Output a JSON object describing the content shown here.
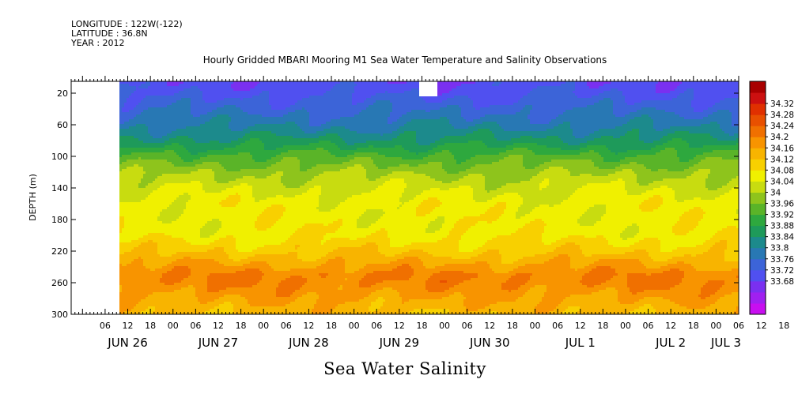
{
  "header": {
    "longitude": "LONGITUDE : 122W(-122)",
    "latitude": "LATITUDE : 36.8N",
    "year": "YEAR : 2012"
  },
  "chart_data": {
    "type": "heatmap",
    "title": "Hourly Gridded MBARI Mooring M1 Sea Water Temperature and Salinity Observations",
    "xlabel": "Sea Water Salinity",
    "ylabel": "DEPTH (m)",
    "x_range": [
      "2012-06-25T21:00",
      "2012-07-03T06:00"
    ],
    "data_start": "2012-06-26T10:00",
    "y_range": [
      300,
      5
    ],
    "y_ticks": [
      20,
      60,
      100,
      140,
      180,
      220,
      260,
      300
    ],
    "x_hour_labels": [
      "06",
      "12",
      "18",
      "00",
      "06",
      "12",
      "18",
      "00",
      "06",
      "12",
      "18",
      "00",
      "06",
      "12",
      "18",
      "00",
      "06",
      "12",
      "18",
      "00",
      "06",
      "12",
      "18",
      "00",
      "06",
      "12",
      "18",
      "00",
      "06",
      "12",
      "18",
      "00"
    ],
    "x_date_labels": [
      "JUN 26",
      "JUN 27",
      "JUN 28",
      "JUN 29",
      "JUN 30",
      "JUL  1",
      "JUL  2",
      "JUL  3"
    ],
    "colorbar": {
      "levels": [
        33.68,
        33.72,
        33.76,
        33.8,
        33.84,
        33.88,
        33.92,
        33.96,
        34,
        34.04,
        34.08,
        34.12,
        34.16,
        34.2,
        34.24,
        34.28,
        34.32
      ],
      "labels": [
        "34.32",
        "34.28",
        "34.24",
        "34.2",
        "34.16",
        "34.12",
        "34.08",
        "34.04",
        "34",
        "33.96",
        "33.92",
        "33.88",
        "33.84",
        "33.8",
        "33.76",
        "33.72",
        "33.68"
      ],
      "colors": [
        "#c80ff0",
        "#a020f0",
        "#7a30f0",
        "#5050f0",
        "#3c64d8",
        "#2878b4",
        "#1c8a8c",
        "#1e9a5a",
        "#2ea83e",
        "#5ab428",
        "#8ec41c",
        "#c8dc10",
        "#f0f000",
        "#f8d000",
        "#f8b400",
        "#f89400",
        "#f07000",
        "#e85000",
        "#e03000",
        "#cc1010",
        "#a80000"
      ]
    },
    "profile": [
      {
        "depth": 5,
        "value": 33.77
      },
      {
        "depth": 20,
        "value": 33.79
      },
      {
        "depth": 40,
        "value": 33.83
      },
      {
        "depth": 60,
        "value": 33.87
      },
      {
        "depth": 80,
        "value": 33.93
      },
      {
        "depth": 100,
        "value": 34.01
      },
      {
        "depth": 120,
        "value": 34.07
      },
      {
        "depth": 140,
        "value": 34.11
      },
      {
        "depth": 160,
        "value": 34.14
      },
      {
        "depth": 180,
        "value": 34.14
      },
      {
        "depth": 200,
        "value": 34.15
      },
      {
        "depth": 220,
        "value": 34.19
      },
      {
        "depth": 240,
        "value": 34.25
      },
      {
        "depth": 250,
        "value": 34.28
      },
      {
        "depth": 260,
        "value": 34.28
      },
      {
        "depth": 280,
        "value": 34.24
      },
      {
        "depth": 300,
        "value": 34.21
      }
    ],
    "grid": false
  }
}
